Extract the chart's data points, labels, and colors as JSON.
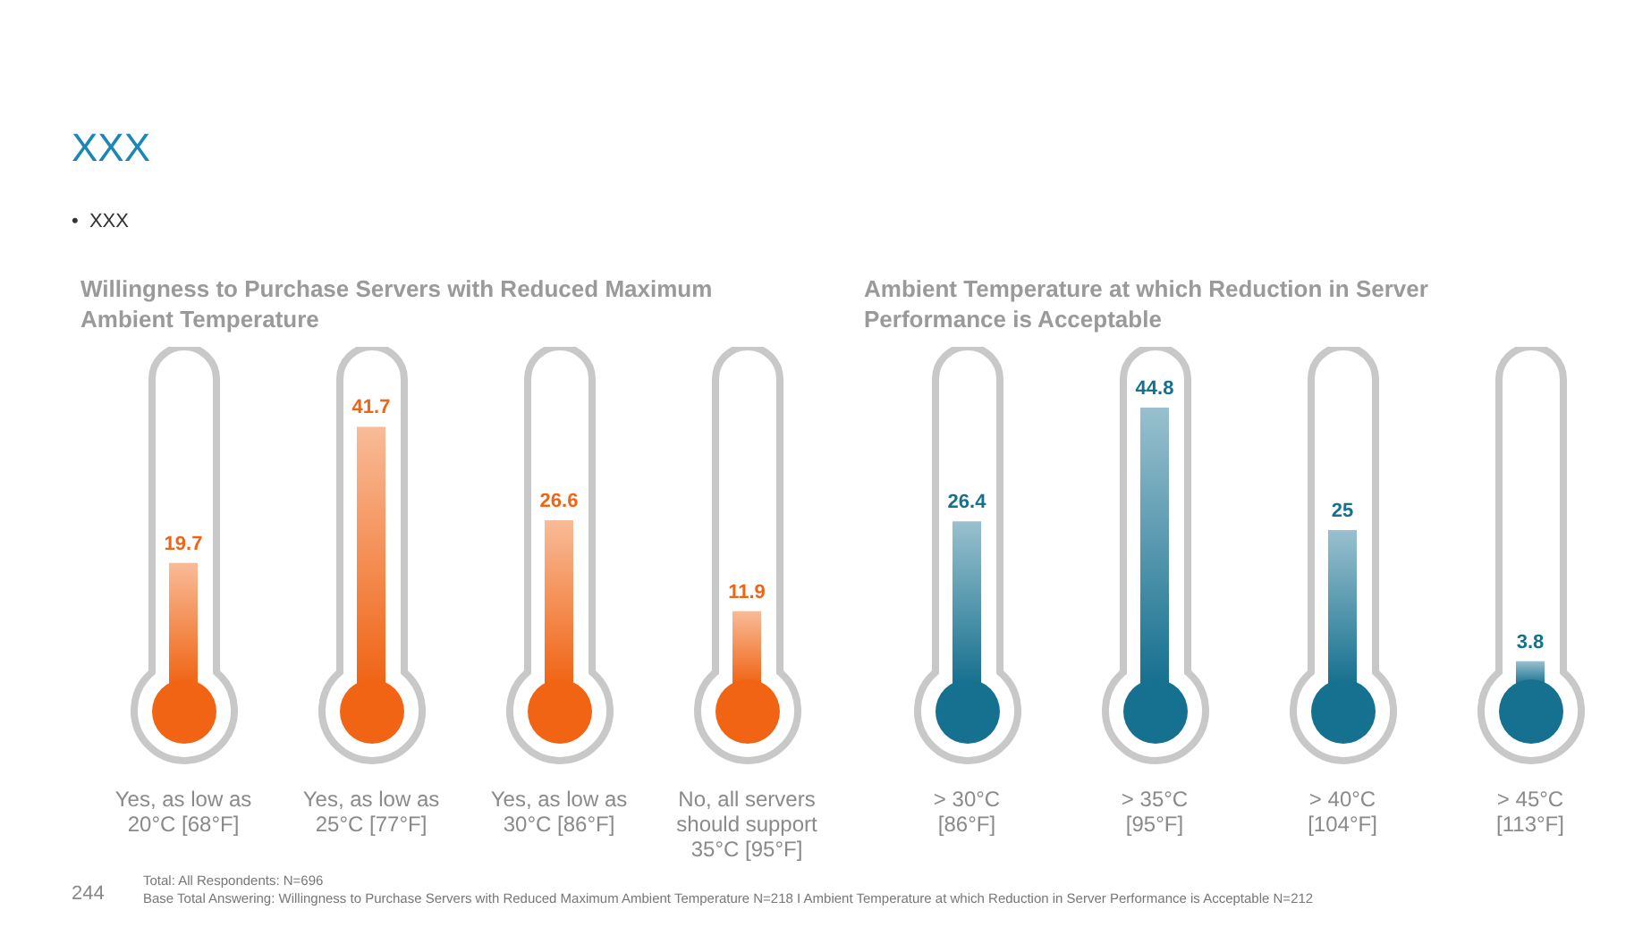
{
  "chart_data": [
    {
      "type": "bar",
      "title": "Willingness to Purchase Servers with Reduced Maximum\nAmbient Temperature",
      "categories": [
        "Yes, as low as\n20°C [68°F]",
        "Yes, as low as\n25°C [77°F]",
        "Yes, as low as\n30°C [86°F]",
        "No, all servers\nshould support\n35°C [95°F]"
      ],
      "values": [
        19.7,
        41.7,
        26.6,
        11.9
      ],
      "color": "#f06414",
      "data_labels": true,
      "grid": false,
      "annotations": [
        "XXX",
        "•  XXX"
      ]
    },
    {
      "type": "bar",
      "title": "Ambient Temperature at which Reduction in Server\nPerformance is Acceptable",
      "categories": [
        "> 30°C\n[86°F]",
        "> 35°C\n[95°F]",
        "> 40°C\n[104°F]",
        "> 45°C\n[113°F]"
      ],
      "values": [
        26.4,
        44.8,
        25,
        3.8
      ],
      "color": "#16708f",
      "data_labels": true,
      "grid": false,
      "annotations": [
        "244",
        "Total: All Respondents: N=696",
        "Base Total Answering: Willingness to Purchase Servers with Reduced Maximum  Ambient Temperature N=218 I Ambient Temperature at which Reduction in Server Performance is Acceptable N=212"
      ]
    }
  ]
}
